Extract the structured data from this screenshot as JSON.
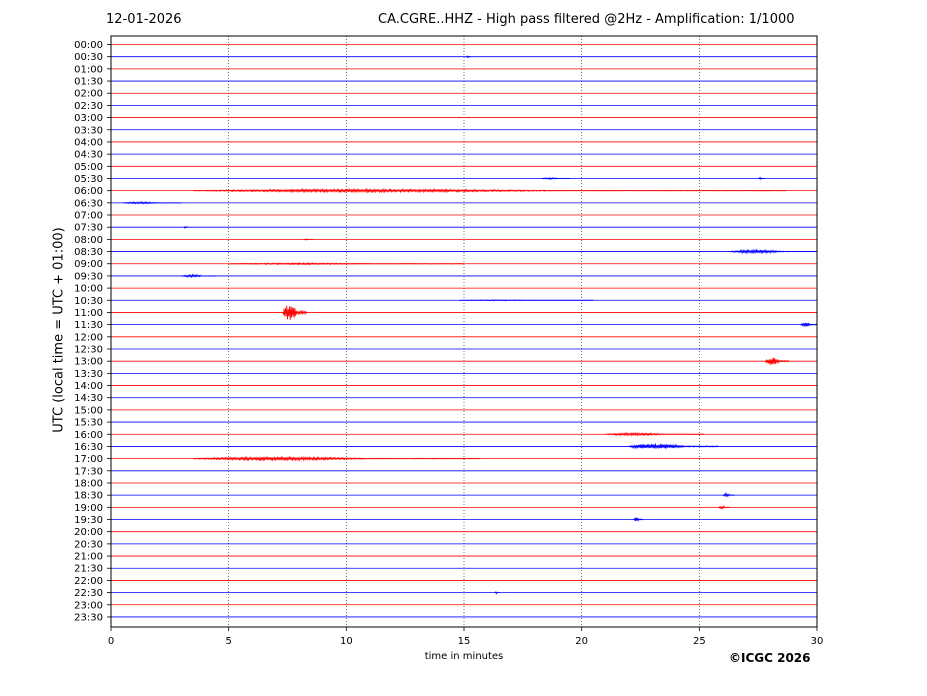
{
  "header": {
    "date": "12-01-2026",
    "title": "CA.CGRE..HHZ - High pass filtered @2Hz - Amplification: 1/1000"
  },
  "footer": {
    "copyright": "©ICGC 2026"
  },
  "chart_data": {
    "type": "line",
    "xlabel": "time in minutes",
    "ylabel": "UTC (local time = UTC + 01:00)",
    "xlim": [
      0,
      30
    ],
    "x_ticks": [
      "0",
      "5",
      "10",
      "15",
      "20",
      "25",
      "30"
    ],
    "grid": "vertical dotted at 5, 10, 15, 20, 25",
    "row_labels": [
      "00:00",
      "00:30",
      "01:00",
      "01:30",
      "02:00",
      "02:30",
      "03:00",
      "03:30",
      "04:00",
      "04:30",
      "05:00",
      "05:30",
      "06:00",
      "06:30",
      "07:00",
      "07:30",
      "08:00",
      "08:30",
      "09:00",
      "09:30",
      "10:00",
      "10:30",
      "11:00",
      "11:30",
      "12:00",
      "12:30",
      "13:00",
      "13:30",
      "14:00",
      "14:30",
      "15:00",
      "15:30",
      "16:00",
      "16:30",
      "17:00",
      "17:30",
      "18:00",
      "18:30",
      "19:00",
      "19:30",
      "20:00",
      "20:30",
      "21:00",
      "21:30",
      "22:00",
      "22:30",
      "23:00",
      "23:30"
    ],
    "colors": {
      "even_rows": "#ff0000",
      "odd_rows": "#0000ff"
    },
    "events": [
      {
        "row": "00:30",
        "start_min": 15.1,
        "end_min": 15.3,
        "amplitude": 0.15
      },
      {
        "row": "05:30",
        "start_min": 18.3,
        "end_min": 19.5,
        "amplitude": 0.12
      },
      {
        "row": "05:30",
        "start_min": 27.5,
        "end_min": 27.8,
        "amplitude": 0.15
      },
      {
        "row": "06:00",
        "start_min": 3.5,
        "end_min": 28.7,
        "amplitude": 0.22
      },
      {
        "row": "06:30",
        "start_min": 0.5,
        "end_min": 3.0,
        "amplitude": 0.15
      },
      {
        "row": "07:30",
        "start_min": 3.1,
        "end_min": 3.3,
        "amplitude": 0.2
      },
      {
        "row": "08:00",
        "start_min": 8.2,
        "end_min": 8.6,
        "amplitude": 0.1
      },
      {
        "row": "08:30",
        "start_min": 26.3,
        "end_min": 30,
        "amplitude": 0.25
      },
      {
        "row": "09:00",
        "start_min": 5.0,
        "end_min": 15.0,
        "amplitude": 0.12
      },
      {
        "row": "09:30",
        "start_min": 3.0,
        "end_min": 4.5,
        "amplitude": 0.2
      },
      {
        "row": "10:30",
        "start_min": 14.8,
        "end_min": 20.5,
        "amplitude": 0.08
      },
      {
        "row": "11:00",
        "start_min": 7.3,
        "end_min": 8.3,
        "amplitude": 1.3
      },
      {
        "row": "11:30",
        "start_min": 29.3,
        "end_min": 30,
        "amplitude": 0.35
      },
      {
        "row": "13:00",
        "start_min": 27.8,
        "end_min": 28.8,
        "amplitude": 0.6
      },
      {
        "row": "16:00",
        "start_min": 21.0,
        "end_min": 25.2,
        "amplitude": 0.2
      },
      {
        "row": "16:30",
        "start_min": 22.0,
        "end_min": 25.8,
        "amplitude": 0.45
      },
      {
        "row": "17:00",
        "start_min": 3.5,
        "end_min": 15.7,
        "amplitude": 0.25
      },
      {
        "row": "18:30",
        "start_min": 26.0,
        "end_min": 26.5,
        "amplitude": 0.25
      },
      {
        "row": "19:00",
        "start_min": 25.8,
        "end_min": 26.3,
        "amplitude": 0.2
      },
      {
        "row": "19:30",
        "start_min": 22.2,
        "end_min": 22.6,
        "amplitude": 0.35
      },
      {
        "row": "22:30",
        "start_min": 16.3,
        "end_min": 16.5,
        "amplitude": 0.2
      }
    ]
  }
}
